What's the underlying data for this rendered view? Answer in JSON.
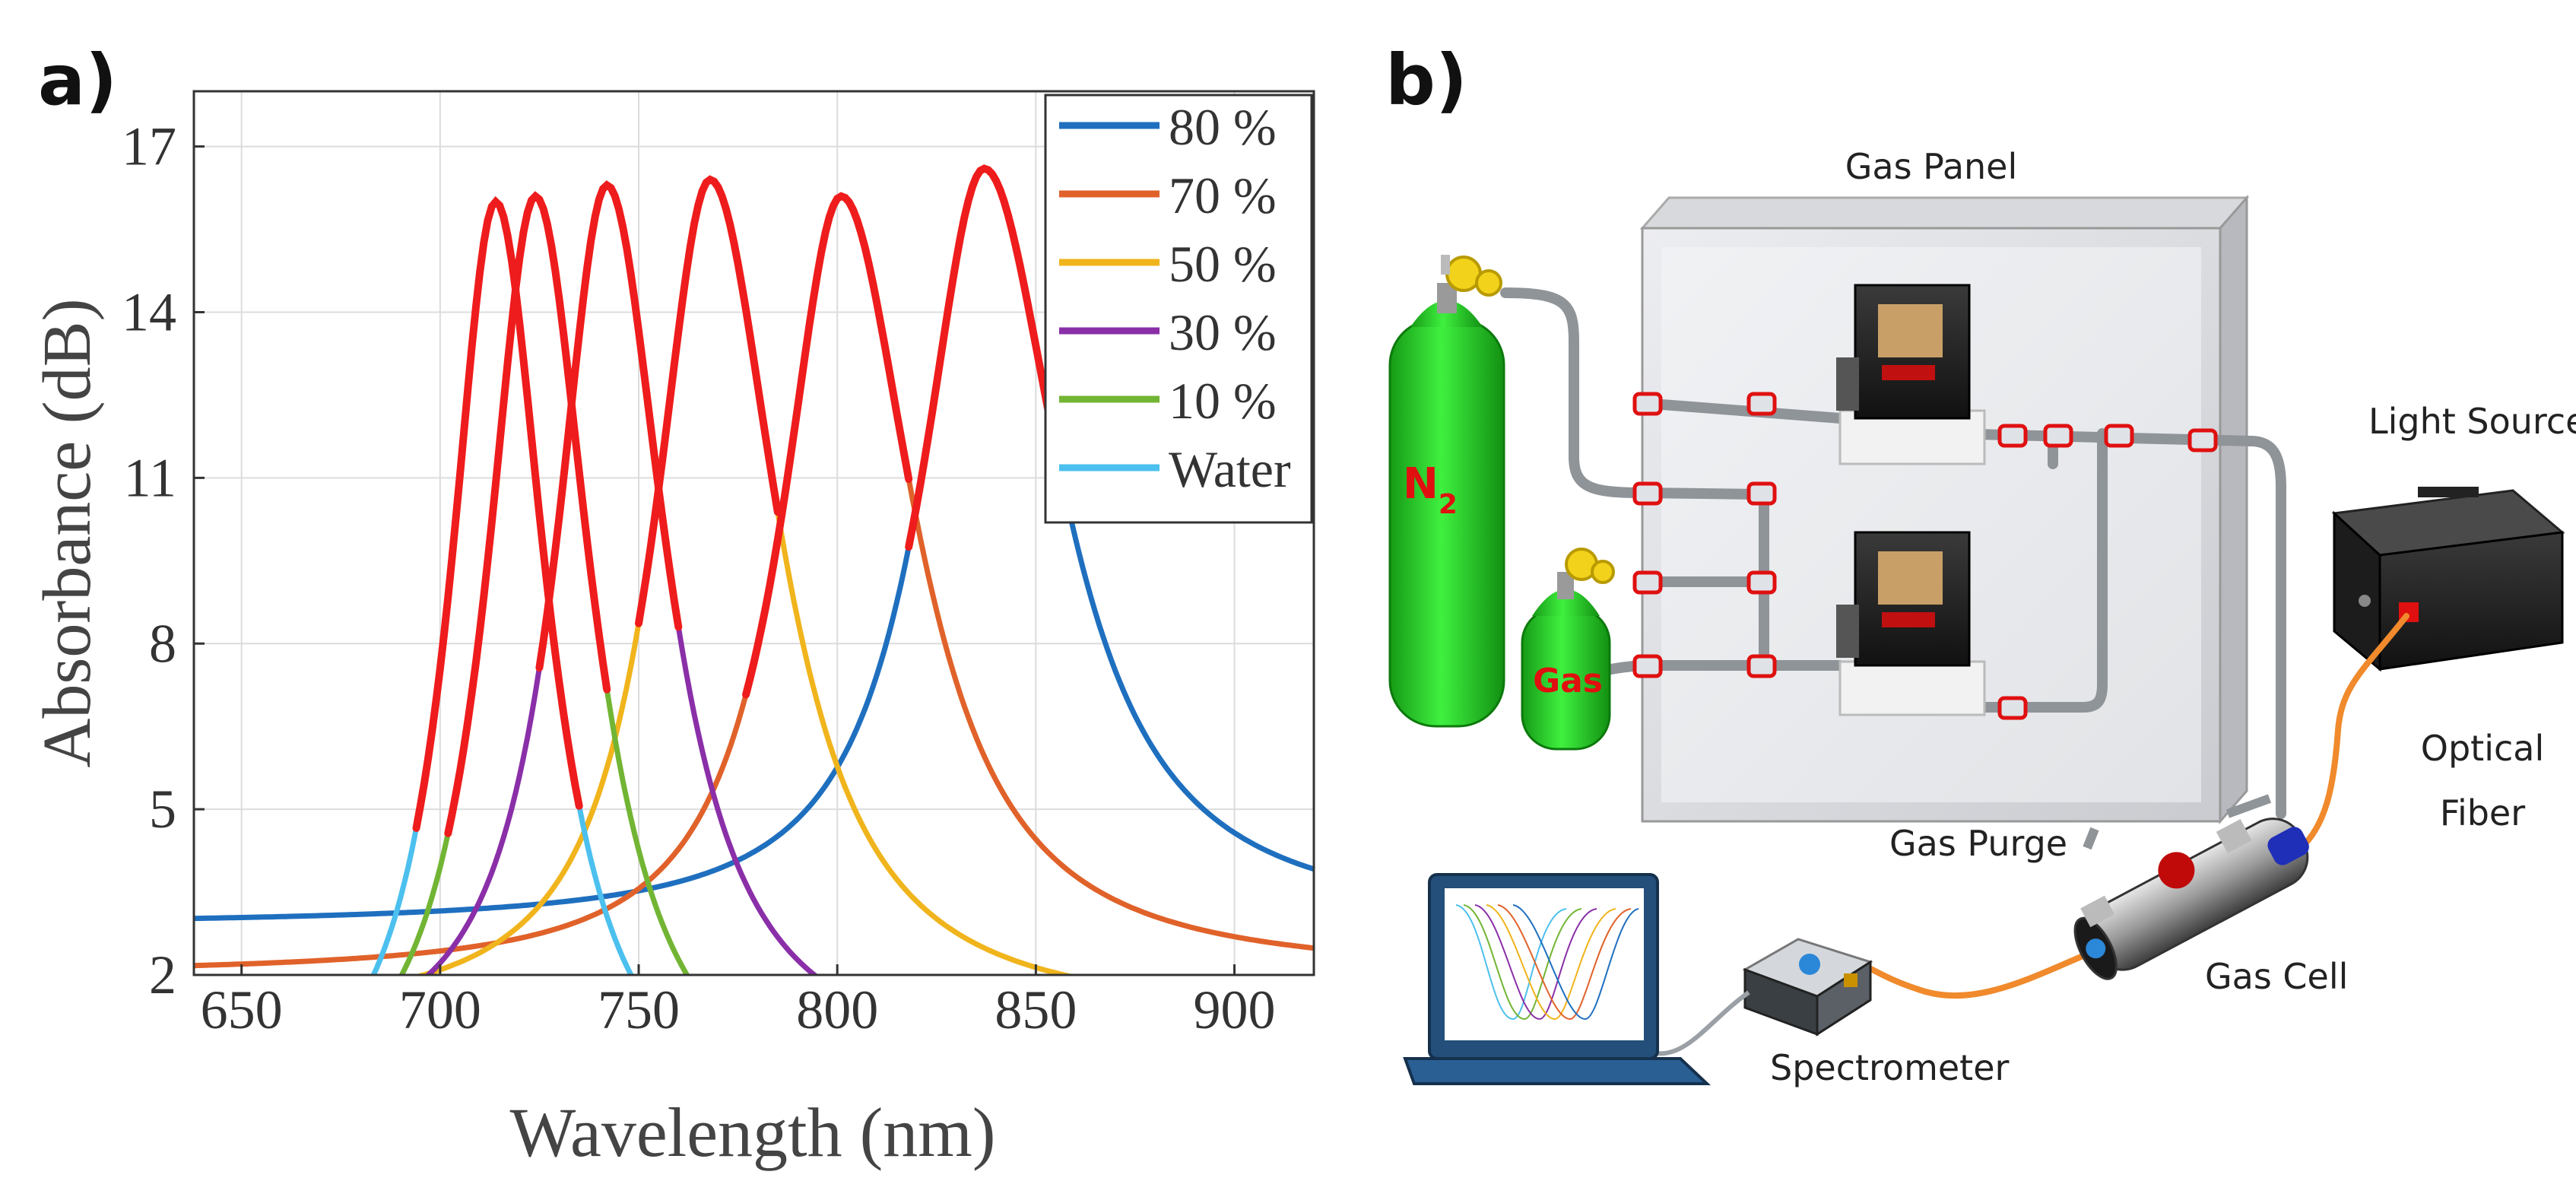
{
  "panel_a": {
    "label": "a)",
    "chart_data": {
      "type": "line",
      "title": "",
      "xlabel": "Wavelength (nm)",
      "ylabel": "Absorbance (dB)",
      "xlim": [
        638,
        920
      ],
      "ylim": [
        2,
        18
      ],
      "xticks": [
        650,
        700,
        750,
        800,
        850,
        900
      ],
      "yticks": [
        2,
        5,
        8,
        11,
        14,
        17
      ],
      "grid": true,
      "legend_position": "top-right",
      "highlight_color": "#ee1c1c",
      "series": [
        {
          "name": "80 %",
          "color": "#1f6fbf",
          "peak": 837,
          "height": 16.6,
          "base": 2.9,
          "w_left": 38,
          "w_right": 47,
          "highlight": [
            818,
            855
          ]
        },
        {
          "name": "70 %",
          "color": "#e0622a",
          "peak": 801,
          "height": 16.1,
          "base": 2.0,
          "w_left": 36,
          "w_right": 45,
          "highlight": [
            777,
            818
          ]
        },
        {
          "name": "50 %",
          "color": "#f0b41c",
          "peak": 768,
          "height": 16.4,
          "base": 1.2,
          "w_left": 34,
          "w_right": 42,
          "highlight": [
            750,
            785
          ]
        },
        {
          "name": "30 %",
          "color": "#8a2fa8",
          "peak": 742,
          "height": 16.3,
          "base": 0.3,
          "w_left": 31,
          "w_right": 36,
          "highlight": [
            725,
            760
          ]
        },
        {
          "name": "10 %",
          "color": "#72b534",
          "peak": 724,
          "height": 16.1,
          "base": -0.8,
          "w_left": 30,
          "w_right": 34,
          "highlight": [
            702,
            742
          ]
        },
        {
          "name": "Water",
          "color": "#4cc0ee",
          "peak": 714,
          "height": 16.0,
          "base": -0.9,
          "w_left": 28,
          "w_right": 31,
          "highlight": [
            694,
            735
          ]
        }
      ]
    }
  },
  "panel_b": {
    "label": "b)",
    "labels": {
      "gas_panel": "Gas Panel",
      "light_source": "Light Source",
      "optical_fiber_line1": "Optical",
      "optical_fiber_line2": "Fiber",
      "gas_purge": "Gas Purge",
      "gas_cell": "Gas Cell",
      "spectrometer": "Spectrometer",
      "n2_main": "N",
      "n2_sub": "2",
      "gas_cylinder": "Gas"
    },
    "colors": {
      "cylinder_green": "#2fdc2f",
      "fiber_orange": "#f08a2c",
      "label_red": "#e01010",
      "laptop_blue": "#234f7a"
    }
  }
}
